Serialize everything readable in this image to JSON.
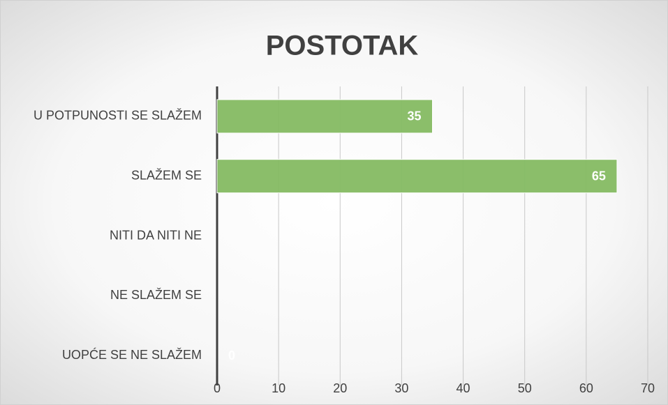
{
  "chart_data": {
    "type": "bar",
    "orientation": "horizontal",
    "title": "POSTOTAK",
    "categories": [
      "U POTPUNOSTI SE SLAŽEM",
      "SLAŽEM SE",
      "NITI DA NITI NE",
      "NE SLAŽEM SE",
      "UOPĆE SE NE SLAŽEM"
    ],
    "values": [
      35,
      65,
      null,
      null,
      0
    ],
    "color": "#85bb62",
    "xlim": [
      0,
      70
    ],
    "xticks": [
      0,
      10,
      20,
      30,
      40,
      50,
      60,
      70
    ],
    "grid": true
  }
}
